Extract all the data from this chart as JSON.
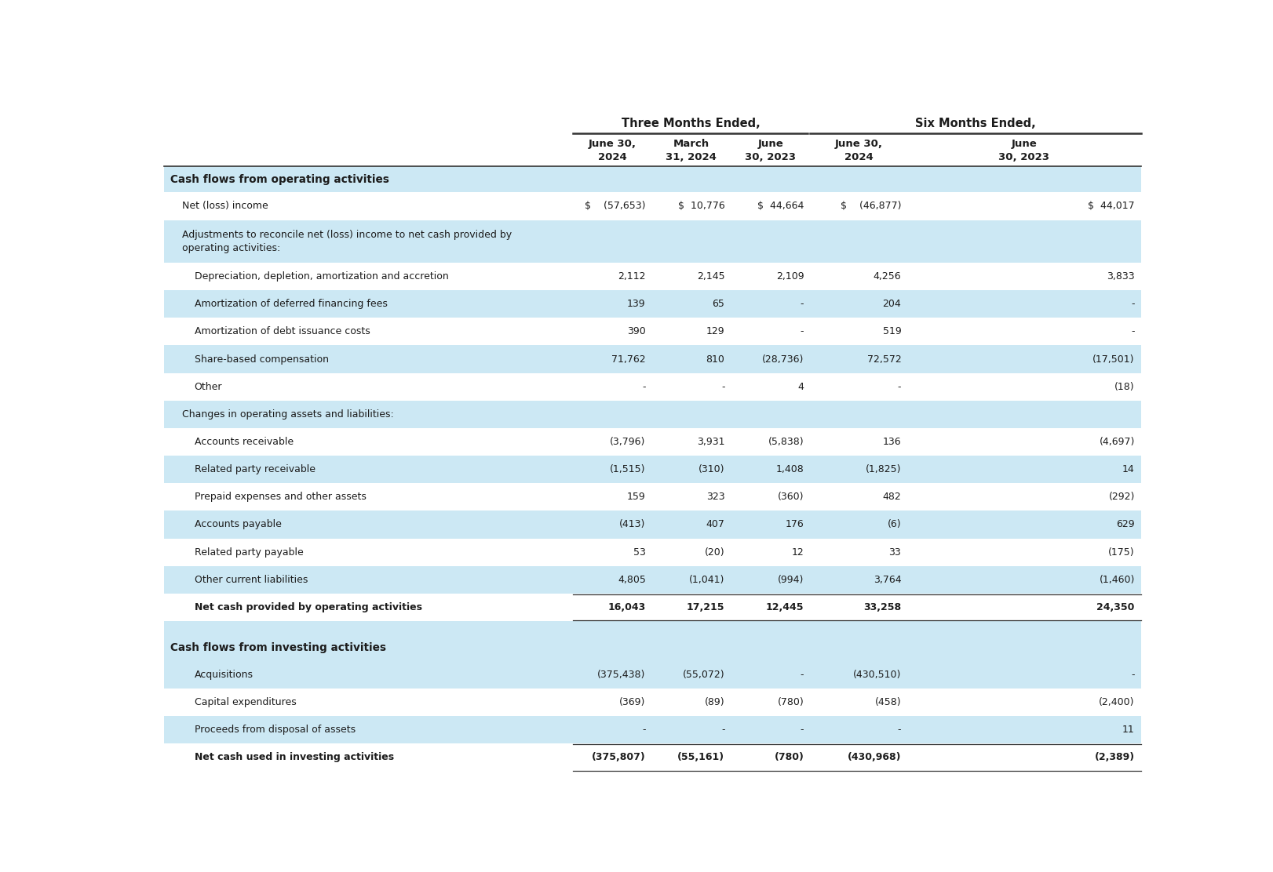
{
  "col_headers_line1_three": "Three Months Ended,",
  "col_headers_line1_six": "Six Months Ended,",
  "col_headers_line2": [
    "June 30,\n2024",
    "March\n31, 2024",
    "June\n30, 2023",
    "June 30,\n2024",
    "June\n30, 2023"
  ],
  "rows": [
    {
      "label": "Cash flows from operating activities",
      "values": [
        "",
        "",
        "",
        "",
        ""
      ],
      "style": "section_header",
      "indent": 0
    },
    {
      "label": "Net (loss) income",
      "values": [
        "$    (57,653)",
        "$  10,776",
        "$  44,664",
        "$    (46,877)",
        "$  44,017"
      ],
      "style": "white",
      "indent": 1,
      "has_dollar": true
    },
    {
      "label": "Adjustments to reconcile net (loss) income to net cash provided by\noperating activities:",
      "values": [
        "",
        "",
        "",
        "",
        ""
      ],
      "style": "shaded",
      "indent": 1,
      "multiline": true
    },
    {
      "label": "Depreciation, depletion, amortization and accretion",
      "values": [
        "2,112",
        "2,145",
        "2,109",
        "4,256",
        "3,833"
      ],
      "style": "white",
      "indent": 2
    },
    {
      "label": "Amortization of deferred financing fees",
      "values": [
        "139",
        "65",
        "-",
        "204",
        "-"
      ],
      "style": "shaded",
      "indent": 2
    },
    {
      "label": "Amortization of debt issuance costs",
      "values": [
        "390",
        "129",
        "-",
        "519",
        "-"
      ],
      "style": "white",
      "indent": 2
    },
    {
      "label": "Share-based compensation",
      "values": [
        "71,762",
        "810",
        "(28,736)",
        "72,572",
        "(17,501)"
      ],
      "style": "shaded",
      "indent": 2
    },
    {
      "label": "Other",
      "values": [
        "-",
        "-",
        "4",
        "-",
        "(18)"
      ],
      "style": "white",
      "indent": 2
    },
    {
      "label": "Changes in operating assets and liabilities:",
      "values": [
        "",
        "",
        "",
        "",
        ""
      ],
      "style": "shaded",
      "indent": 1
    },
    {
      "label": "Accounts receivable",
      "values": [
        "(3,796)",
        "3,931",
        "(5,838)",
        "136",
        "(4,697)"
      ],
      "style": "white",
      "indent": 2
    },
    {
      "label": "Related party receivable",
      "values": [
        "(1,515)",
        "(310)",
        "1,408",
        "(1,825)",
        "14"
      ],
      "style": "shaded",
      "indent": 2
    },
    {
      "label": "Prepaid expenses and other assets",
      "values": [
        "159",
        "323",
        "(360)",
        "482",
        "(292)"
      ],
      "style": "white",
      "indent": 2
    },
    {
      "label": "Accounts payable",
      "values": [
        "(413)",
        "407",
        "176",
        "(6)",
        "629"
      ],
      "style": "shaded",
      "indent": 2
    },
    {
      "label": "Related party payable",
      "values": [
        "53",
        "(20)",
        "12",
        "33",
        "(175)"
      ],
      "style": "white",
      "indent": 2
    },
    {
      "label": "Other current liabilities",
      "values": [
        "4,805",
        "(1,041)",
        "(994)",
        "3,764",
        "(1,460)"
      ],
      "style": "shaded",
      "indent": 2
    },
    {
      "label": "Net cash provided by operating activities",
      "values": [
        "16,043",
        "17,215",
        "12,445",
        "33,258",
        "24,350"
      ],
      "style": "bold_total",
      "indent": 2
    },
    {
      "label": "",
      "values": [
        "",
        "",
        "",
        "",
        ""
      ],
      "style": "spacer",
      "indent": 0
    },
    {
      "label": "Cash flows from investing activities",
      "values": [
        "",
        "",
        "",
        "",
        ""
      ],
      "style": "section_header",
      "indent": 0
    },
    {
      "label": "Acquisitions",
      "values": [
        "(375,438)",
        "(55,072)",
        "-",
        "(430,510)",
        "-"
      ],
      "style": "shaded",
      "indent": 2
    },
    {
      "label": "Capital expenditures",
      "values": [
        "(369)",
        "(89)",
        "(780)",
        "(458)",
        "(2,400)"
      ],
      "style": "white",
      "indent": 2
    },
    {
      "label": "Proceeds from disposal of assets",
      "values": [
        "-",
        "-",
        "-",
        "-",
        "11"
      ],
      "style": "shaded",
      "indent": 2
    },
    {
      "label": "Net cash used in investing activities",
      "values": [
        "(375,807)",
        "(55,161)",
        "(780)",
        "(430,968)",
        "(2,389)"
      ],
      "style": "bold_total",
      "indent": 2
    }
  ],
  "bg_white": "#ffffff",
  "bg_shaded": "#cce8f4",
  "text_dark": "#1c1c1c",
  "line_color": "#333333",
  "font_size_data": 9.0,
  "font_size_header": 9.5,
  "font_size_section": 9.8
}
